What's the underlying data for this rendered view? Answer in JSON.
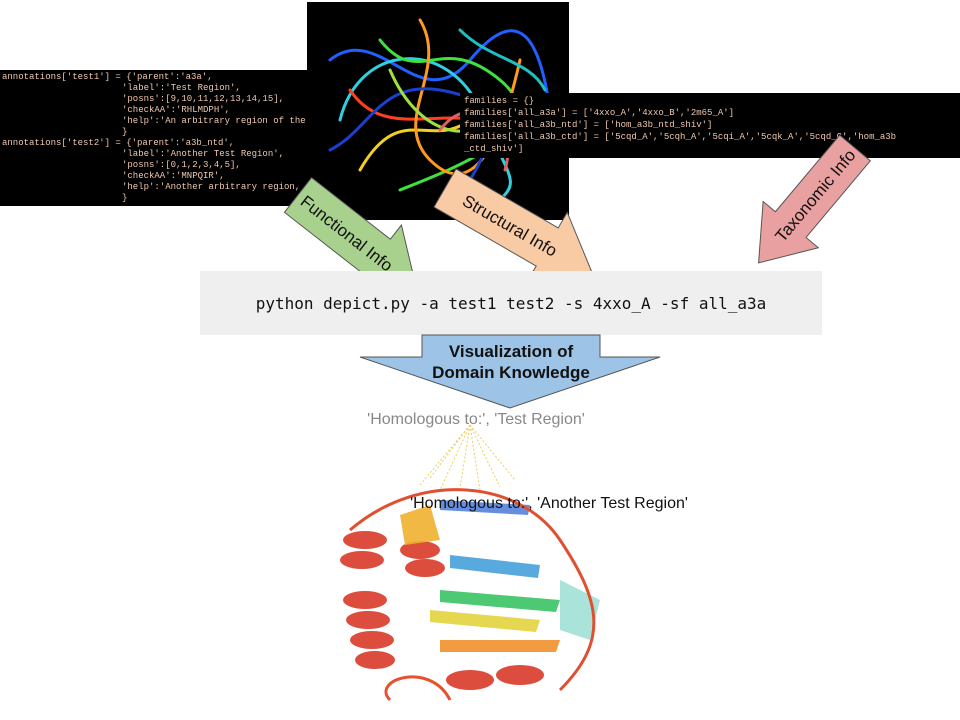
{
  "code_left": {
    "lines": [
      "annotations['test1'] = {'parent':'a3a',",
      "'label':'Test Region',",
      "'posns':[9,10,11,12,13,14,15],",
      "'checkAA':'RHLMDPH',",
      "'help':'An arbitrary region of the",
      "}",
      "annotations['test2'] = {'parent':'a3b_ntd',",
      "'label':'Another Test Region',",
      "'posns':[0,1,2,3,4,5],",
      "'checkAA':'MNPQIR',",
      "'help':'Another arbitrary region,",
      "}"
    ]
  },
  "code_right": {
    "lines": [
      "families = {}",
      "families['all_a3a'] = ['4xxo_A','4xxo_B','2m65_A']",
      "families['all_a3b_ntd'] = ['hom_a3b_ntd_shiv']",
      "families['all_a3b_ctd'] = ['5cqd_A','5cqh_A','5cqi_A','5cqk_A','5cqd_C','hom_a3b",
      "_ctd_shiv']"
    ]
  },
  "arrows": {
    "functional": "Functional Info",
    "structural": "Structural  Info",
    "taxonomic": "Taxonomic Info"
  },
  "command": "python depict.py -a test1 test2 -s 4xxo_A -sf all_a3a",
  "output": {
    "title_line1": "Visualization of",
    "title_line2": "Domain Knowledge"
  },
  "labels": {
    "first": "'Homologous to:', 'Test Region'",
    "second": "'Homologous to:', 'Another Test Region'"
  }
}
